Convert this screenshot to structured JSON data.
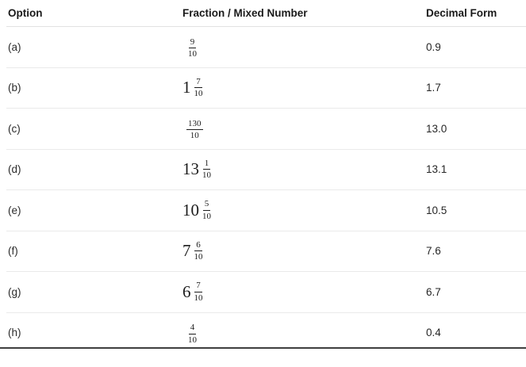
{
  "table": {
    "columns": [
      {
        "label": "Option"
      },
      {
        "label": "Fraction / Mixed Number"
      },
      {
        "label": "Decimal Form"
      }
    ],
    "rows": [
      {
        "option": "(a)",
        "whole": "",
        "numerator": "9",
        "denominator": "10",
        "decimal": "0.9"
      },
      {
        "option": "(b)",
        "whole": "1",
        "numerator": "7",
        "denominator": "10",
        "decimal": "1.7"
      },
      {
        "option": "(c)",
        "whole": "",
        "numerator": "130",
        "denominator": "10",
        "decimal": "13.0"
      },
      {
        "option": "(d)",
        "whole": "13",
        "numerator": "1",
        "denominator": "10",
        "decimal": "13.1"
      },
      {
        "option": "(e)",
        "whole": "10",
        "numerator": "5",
        "denominator": "10",
        "decimal": "10.5"
      },
      {
        "option": "(f)",
        "whole": "7",
        "numerator": "6",
        "denominator": "10",
        "decimal": "7.6"
      },
      {
        "option": "(g)",
        "whole": "6",
        "numerator": "7",
        "denominator": "10",
        "decimal": "6.7"
      },
      {
        "option": "(h)",
        "whole": "",
        "numerator": "4",
        "denominator": "10",
        "decimal": "0.4"
      }
    ]
  },
  "colors": {
    "background": "#ffffff",
    "header_text": "#1a1a1a",
    "body_text": "#262626",
    "separator": "#eaeaea",
    "bottom_rule": "#3f3f3f"
  }
}
